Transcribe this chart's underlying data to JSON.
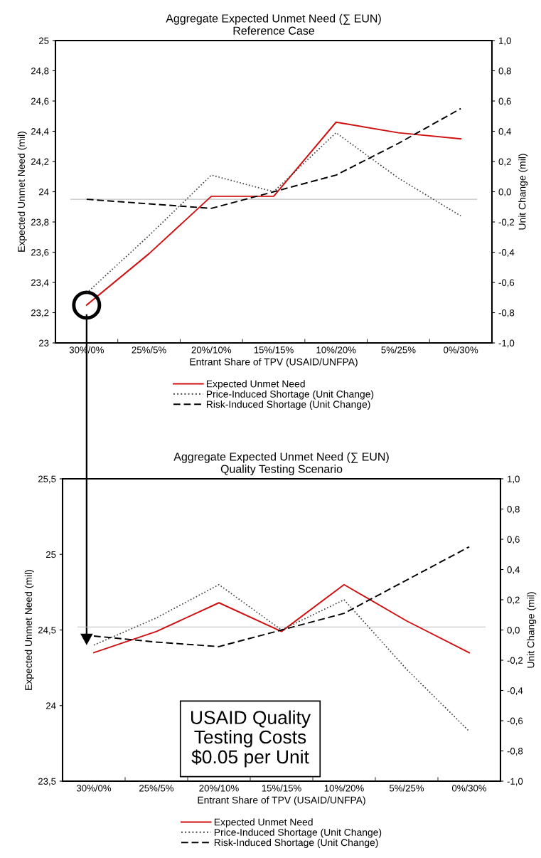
{
  "chart_data": [
    {
      "type": "line",
      "title": "Aggregate Expected Unmet Need (∑ EUN)",
      "subtitle": "Reference Case",
      "xlabel": "Entrant Share of TPV (USAID/UNFPA)",
      "ylabel": "Expected Unmet Need (mil)",
      "y2label": "Unit Change (mil)",
      "categories": [
        "30%/0%",
        "25%/5%",
        "20%/10%",
        "15%/15%",
        "10%/20%",
        "5%/25%",
        "0%/30%"
      ],
      "series": [
        {
          "name": "Expected Unmet Need",
          "color": "#d01010",
          "line_style": "solid",
          "values": [
            23.25,
            23.59,
            23.97,
            23.97,
            24.46,
            24.39,
            24.35
          ]
        },
        {
          "name": "Price-Induced Shortage (Unit Change)",
          "color": "#404040",
          "line_style": "dotted",
          "axis": "y2",
          "values": [
            -0.67,
            -0.29,
            0.11,
            0.0,
            0.39,
            0.09,
            -0.16
          ]
        },
        {
          "name": "Risk-Induced Shortage (Unit Change)",
          "color": "#000000",
          "line_style": "dashed",
          "axis": "y2",
          "values": [
            -0.05,
            -0.08,
            -0.11,
            0.0,
            0.11,
            0.32,
            0.55
          ]
        }
      ],
      "ylim": [
        23,
        25
      ],
      "yticks": [
        23,
        {
          "value": 23.2,
          "label": "23,2"
        },
        {
          "value": 23.4,
          "label": "23,4"
        },
        {
          "value": 23.6,
          "label": "23,6"
        },
        {
          "value": 23.8,
          "label": "23,8"
        },
        24,
        {
          "value": 24.2,
          "label": "24,2"
        },
        {
          "value": 24.4,
          "label": "24,4"
        },
        {
          "value": 24.6,
          "label": "24,6"
        },
        {
          "value": 24.8,
          "label": "24,8"
        },
        25
      ],
      "y2lim": [
        -1,
        1
      ],
      "y2ticks": [
        {
          "value": -1,
          "label": "-1,0"
        },
        {
          "value": -0.8,
          "label": "-0,8"
        },
        {
          "value": -0.6,
          "label": "-0,6"
        },
        {
          "value": -0.4,
          "label": "-0,4"
        },
        {
          "value": -0.2,
          "label": "-0,2"
        },
        {
          "value": 0,
          "label": "0,0"
        },
        {
          "value": 0.2,
          "label": "0,2"
        },
        {
          "value": 0.4,
          "label": "0,4"
        },
        {
          "value": 0.6,
          "label": "0,6"
        },
        {
          "value": 0.8,
          "label": "0,8"
        },
        {
          "value": 1,
          "label": "1,0"
        }
      ],
      "ref_lines": [
        {
          "axis": "y",
          "value": 23.95,
          "color": "#c0c0c0"
        }
      ],
      "legend": "bottom",
      "marker": "none",
      "grid": false
    },
    {
      "type": "line",
      "title": "Aggregate Expected Unmet Need (∑ EUN)",
      "subtitle": "Quality Testing Scenario",
      "xlabel": "Entrant Share of TPV (USAID/UNFPA)",
      "ylabel": "Expected Unmet Need (mil)",
      "y2label": "Unit Change (mil)",
      "categories": [
        "30%/0%",
        "25%/5%",
        "20%/10%",
        "15%/15%",
        "10%/20%",
        "5%/25%",
        "0%/30%"
      ],
      "series": [
        {
          "name": "Expected Unmet Need",
          "color": "#d01010",
          "line_style": "solid",
          "values": [
            24.35,
            24.49,
            24.68,
            24.49,
            24.8,
            24.56,
            24.35
          ]
        },
        {
          "name": "Price-Induced Shortage (Unit Change)",
          "color": "#404040",
          "line_style": "dotted",
          "axis": "y2",
          "values": [
            -0.1,
            0.08,
            0.3,
            0.0,
            0.2,
            -0.26,
            -0.67
          ]
        },
        {
          "name": "Risk-Induced Shortage (Unit Change)",
          "color": "#000000",
          "line_style": "dashed",
          "axis": "y2",
          "values": [
            -0.04,
            -0.08,
            -0.11,
            0.0,
            0.11,
            0.33,
            0.55
          ]
        }
      ],
      "ylim": [
        23.5,
        25.5
      ],
      "yticks": [
        {
          "value": 23.5,
          "label": "23,5"
        },
        24,
        {
          "value": 24.5,
          "label": "24,5"
        },
        25,
        {
          "value": 25.5,
          "label": "25,5"
        }
      ],
      "y2lim": [
        -1,
        1
      ],
      "y2ticks": [
        {
          "value": -1,
          "label": "-1,0"
        },
        {
          "value": -0.8,
          "label": "-0,8"
        },
        {
          "value": -0.6,
          "label": "-0,6"
        },
        {
          "value": -0.4,
          "label": "-0,4"
        },
        {
          "value": -0.2,
          "label": "-0,2"
        },
        {
          "value": 0,
          "label": "0,0"
        },
        {
          "value": 0.2,
          "label": "0,2"
        },
        {
          "value": 0.4,
          "label": "0,4"
        },
        {
          "value": 0.6,
          "label": "0,6"
        },
        {
          "value": 0.8,
          "label": "0,8"
        },
        {
          "value": 1,
          "label": "1,0"
        }
      ],
      "ref_lines": [
        {
          "axis": "y",
          "value": 24.52,
          "color": "#c0c0c0"
        }
      ],
      "annotations": [
        "USAID Quality\nTesting Costs\n$0.05 per Unit"
      ],
      "legend": "bottom",
      "marker": "none",
      "grid": false
    }
  ]
}
